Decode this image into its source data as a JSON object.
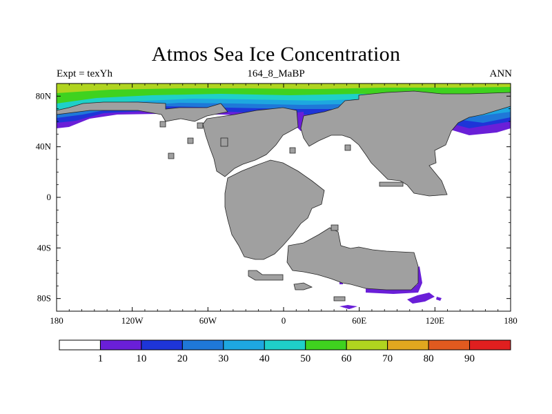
{
  "title": "Atmos Sea Ice Concentration",
  "left_label": "Expt = texYh",
  "center_label": "164_8_MaBP",
  "right_label": "ANN",
  "axes": {
    "x_ticks": [
      "180",
      "120W",
      "60W",
      "0",
      "60E",
      "120E",
      "180"
    ],
    "y_ticks": [
      "80N",
      "40N",
      "0",
      "40S",
      "80S"
    ]
  },
  "colorbar": {
    "labels": [
      "1",
      "10",
      "20",
      "30",
      "40",
      "50",
      "60",
      "70",
      "80",
      "90"
    ],
    "colors": [
      "#ffffff",
      "#6a1fd8",
      "#1e35d8",
      "#1f78d8",
      "#1ea7e0",
      "#1fd0c8",
      "#3fd21f",
      "#b0d41f",
      "#e0a71f",
      "#e05a1f",
      "#e01f1f"
    ]
  },
  "land_color": "#a0a0a0",
  "chart_data": {
    "type": "heatmap",
    "title": "Atmos Sea Ice Concentration",
    "subtitle": "164_8_MaBP",
    "xlim": [
      -180,
      180
    ],
    "ylim": [
      -90,
      90
    ],
    "x_ticks": [
      "180",
      "120W",
      "60W",
      "0",
      "60E",
      "120E",
      "180"
    ],
    "y_ticks": [
      "80N",
      "40N",
      "0",
      "40S",
      "80S"
    ],
    "levels": [
      1,
      10,
      20,
      30,
      40,
      50,
      60,
      70,
      80,
      90
    ],
    "observed_range": [
      1,
      70
    ]
  }
}
